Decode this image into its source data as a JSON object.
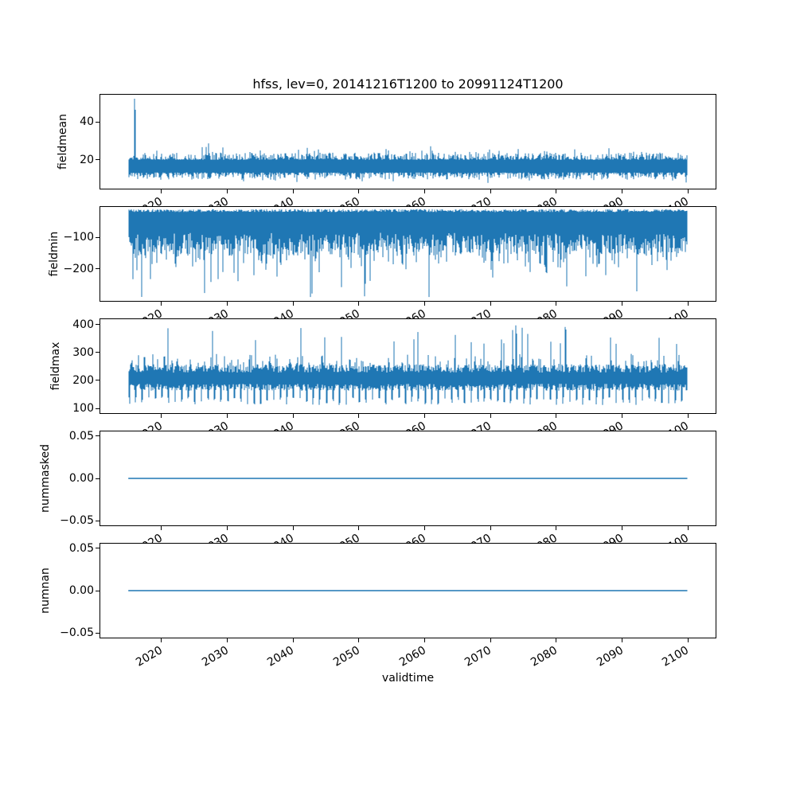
{
  "figure_title": "hfss, lev=0, 20141216T1200 to 20991124T1200",
  "xlabel": "validtime",
  "line_color": "#1f77b4",
  "x_axis": {
    "xlim": [
      2010.7,
      2104.2
    ],
    "ticks": [
      2020,
      2030,
      2040,
      2050,
      2060,
      2070,
      2080,
      2090,
      2100
    ],
    "tick_labels": [
      "2020",
      "2030",
      "2040",
      "2050",
      "2060",
      "2070",
      "2080",
      "2090",
      "2100"
    ],
    "tick_rotation_deg": 30,
    "data_start_year": 2014.96,
    "data_end_year": 2099.9
  },
  "chart_data": [
    {
      "type": "line",
      "name": "fieldmean",
      "ylabel": "fieldmean",
      "ylim": [
        4.6,
        54.6
      ],
      "yticks": [
        {
          "v": 40,
          "label": "40"
        },
        {
          "v": 20,
          "label": "20"
        }
      ],
      "grid": false,
      "legend": null,
      "summary": "dense noisy band, core 12-21, hairs 8-28, single large spike at start",
      "profile": {
        "kind": "noisy-band",
        "core_top": 20.0,
        "top_jitter": 3.8,
        "top_spike_prob": 0.1,
        "top_spike_extra": 5.5,
        "core_bot": 13.2,
        "bot_jitter": 3.8,
        "bot_spike_prob": 0.1,
        "bot_spike_extra": 2.5
      },
      "anomaly": {
        "x": 2015.9,
        "v": 52.5,
        "from": 13.0
      }
    },
    {
      "type": "line",
      "name": "fieldmin",
      "ylabel": "fieldmin",
      "ylim": [
        -302.5,
        -2.5
      ],
      "yticks": [
        {
          "v": -100,
          "label": "−100"
        },
        {
          "v": -200,
          "label": "−200"
        }
      ],
      "grid": false,
      "legend": null,
      "summary": "dense negative band, top near -10..-19, core to -85..-155, frequent spikes to -210, rare to -290",
      "profile": {
        "kind": "spiky-down",
        "top_base": -9.5,
        "top_jitter": 9.5,
        "base_depth": 85,
        "depth_jitter": 70,
        "extra_prob": 0.35,
        "extra": 55,
        "deep_prob": 0.045,
        "deep_base": 55,
        "deep_jitter": 75,
        "max_depth": 290
      },
      "anomaly": {
        "x": 2050.8,
        "v": -288,
        "from": -20
      }
    },
    {
      "type": "line",
      "name": "fieldmax",
      "ylabel": "fieldmax",
      "ylim": [
        83,
        419
      ],
      "yticks": [
        {
          "v": 400,
          "label": "400"
        },
        {
          "v": 300,
          "label": "300"
        },
        {
          "v": 200,
          "label": "200"
        },
        {
          "v": 100,
          "label": "100"
        }
      ],
      "grid": false,
      "legend": null,
      "summary": "annual oscillation: core 165-260, yearly dips to 110-140, peaks 270-310, occasional spikes 330-397",
      "profile": {
        "kind": "periodic-band",
        "period_years": 1,
        "tooth_frac": 0.22,
        "tooth_bot": 112,
        "tooth_jitter": 30,
        "base_bot": 163,
        "base_bot_jitter": 25,
        "base_top": 228,
        "base_top_jitter": 30,
        "peak_prob": 0.5,
        "peak_top": 244,
        "peak_jitter": 52,
        "tall_prob": 0.035,
        "tall_top": 330,
        "tall_jitter": 62
      },
      "anomaly": {
        "x": 2073.8,
        "v": 397,
        "from": 200
      }
    },
    {
      "type": "line",
      "name": "nummasked",
      "ylabel": "nummasked",
      "ylim": [
        -0.0555,
        0.0555
      ],
      "yticks": [
        {
          "v": 0.05,
          "label": "0.05"
        },
        {
          "v": 0,
          "label": "0.00"
        },
        {
          "v": -0.05,
          "label": "−0.05"
        }
      ],
      "grid": false,
      "legend": null,
      "summary": "constant zero line over full time range",
      "profile": {
        "kind": "constant",
        "value": 0
      }
    },
    {
      "type": "line",
      "name": "numnan",
      "ylabel": "numnan",
      "ylim": [
        -0.0555,
        0.0555
      ],
      "yticks": [
        {
          "v": 0.05,
          "label": "0.05"
        },
        {
          "v": 0,
          "label": "0.00"
        },
        {
          "v": -0.05,
          "label": "−0.05"
        }
      ],
      "grid": false,
      "legend": null,
      "summary": "constant zero line over full time range",
      "profile": {
        "kind": "constant",
        "value": 0
      }
    }
  ]
}
